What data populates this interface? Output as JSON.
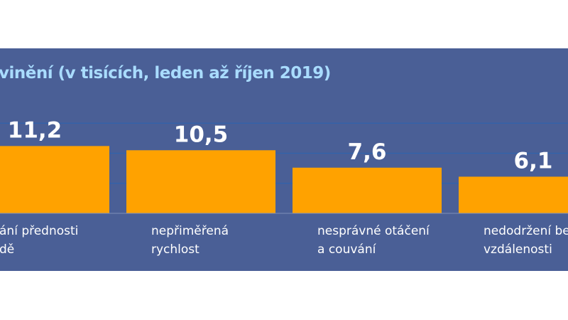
{
  "chart_data": {
    "type": "bar",
    "title": "vinění (v tisících, leden až říjen 2019)",
    "categories": [
      "ání přednosti\ndě",
      "nepřiměřená\nrychlost",
      "nesprávné otáčení\na couvání",
      "nedodržení bez\nvzdálenosti"
    ],
    "values": [
      11.2,
      10.5,
      7.6,
      6.1
    ],
    "value_labels": [
      "11,2",
      "10,5",
      "7,6",
      "6,1"
    ],
    "ylim": [
      0,
      15
    ],
    "gridlines": [
      5,
      10,
      15
    ],
    "grid": true,
    "xlabel": "",
    "ylabel": "",
    "colors": {
      "background": "#4a5f96",
      "bar": "#ffa200",
      "title": "#a9dcff",
      "grid": "#3163ad",
      "text": "#ffffff"
    }
  }
}
